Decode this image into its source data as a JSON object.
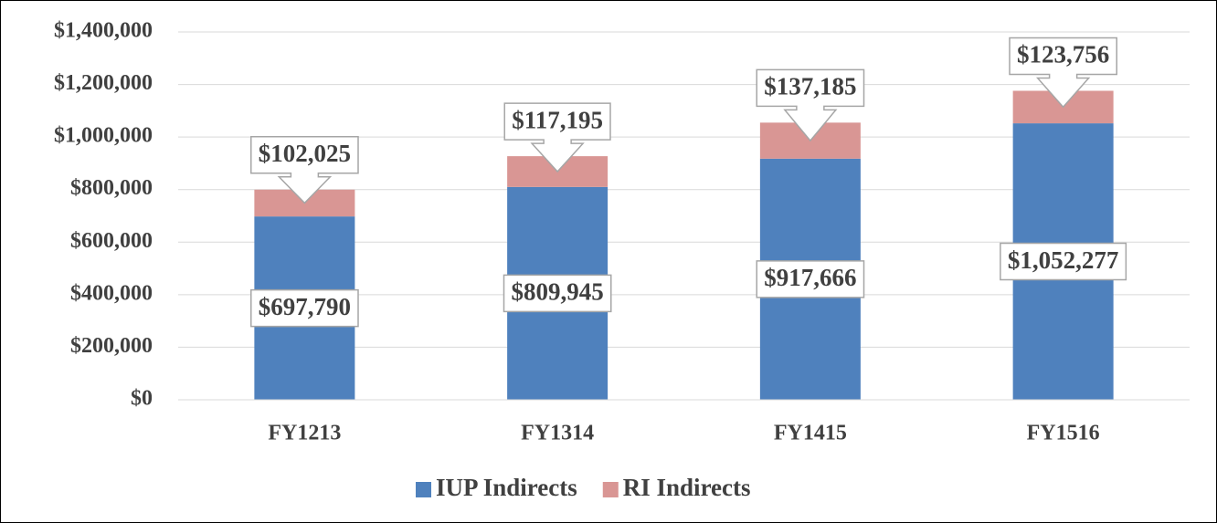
{
  "chart_data": {
    "type": "stacked_bar",
    "categories": [
      "FY1213",
      "FY1314",
      "FY1415",
      "FY1516"
    ],
    "series": [
      {
        "name": "IUP Indirects",
        "color": "#4f81bd",
        "values": [
          697790,
          809945,
          917666,
          1052277
        ],
        "value_labels": [
          "$697,790",
          "$809,945",
          "$917,666",
          "$1,052,277"
        ]
      },
      {
        "name": "RI Indirects",
        "color": "#d99694",
        "values": [
          102025,
          117195,
          137185,
          123756
        ],
        "value_labels": [
          "$102,025",
          "$117,195",
          "$137,185",
          "$123,756"
        ]
      }
    ],
    "ylim": [
      0,
      1400000
    ],
    "yticks": [
      {
        "value": 0,
        "label": "$0"
      },
      {
        "value": 200000,
        "label": "$200,000"
      },
      {
        "value": 400000,
        "label": "$400,000"
      },
      {
        "value": 600000,
        "label": "$600,000"
      },
      {
        "value": 800000,
        "label": "$800,000"
      },
      {
        "value": 1000000,
        "label": "$1,000,000"
      },
      {
        "value": 1200000,
        "label": "$1,200,000"
      },
      {
        "value": 1400000,
        "label": "$1,400,000"
      }
    ],
    "grid": true,
    "legend": "bottom"
  }
}
